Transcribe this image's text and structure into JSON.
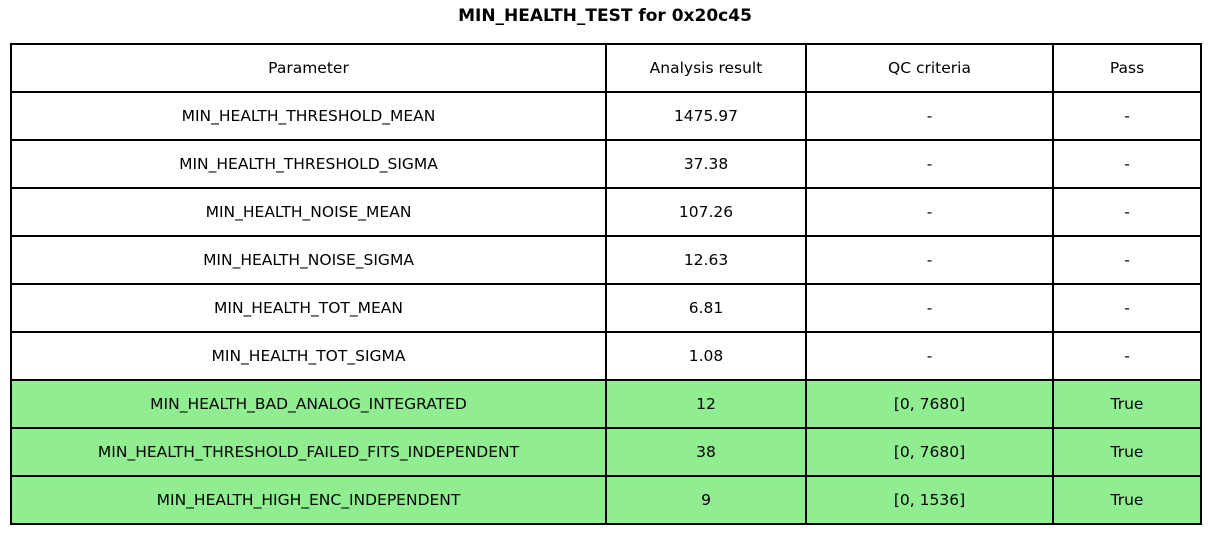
{
  "title": "MIN_HEALTH_TEST for 0x20c45",
  "colors": {
    "pass_highlight": "#90ee90",
    "border": "#000000",
    "background": "#ffffff"
  },
  "table": {
    "headers": [
      "Parameter",
      "Analysis result",
      "QC criteria",
      "Pass"
    ],
    "rows": [
      {
        "parameter": "MIN_HEALTH_THRESHOLD_MEAN",
        "result": "1475.97",
        "qc": "-",
        "pass": "-",
        "highlight": false
      },
      {
        "parameter": "MIN_HEALTH_THRESHOLD_SIGMA",
        "result": "37.38",
        "qc": "-",
        "pass": "-",
        "highlight": false
      },
      {
        "parameter": "MIN_HEALTH_NOISE_MEAN",
        "result": "107.26",
        "qc": "-",
        "pass": "-",
        "highlight": false
      },
      {
        "parameter": "MIN_HEALTH_NOISE_SIGMA",
        "result": "12.63",
        "qc": "-",
        "pass": "-",
        "highlight": false
      },
      {
        "parameter": "MIN_HEALTH_TOT_MEAN",
        "result": "6.81",
        "qc": "-",
        "pass": "-",
        "highlight": false
      },
      {
        "parameter": "MIN_HEALTH_TOT_SIGMA",
        "result": "1.08",
        "qc": "-",
        "pass": "-",
        "highlight": false
      },
      {
        "parameter": "MIN_HEALTH_BAD_ANALOG_INTEGRATED",
        "result": "12",
        "qc": "[0, 7680]",
        "pass": "True",
        "highlight": true
      },
      {
        "parameter": "MIN_HEALTH_THRESHOLD_FAILED_FITS_INDEPENDENT",
        "result": "38",
        "qc": "[0, 7680]",
        "pass": "True",
        "highlight": true
      },
      {
        "parameter": "MIN_HEALTH_HIGH_ENC_INDEPENDENT",
        "result": "9",
        "qc": "[0, 1536]",
        "pass": "True",
        "highlight": true
      }
    ]
  }
}
